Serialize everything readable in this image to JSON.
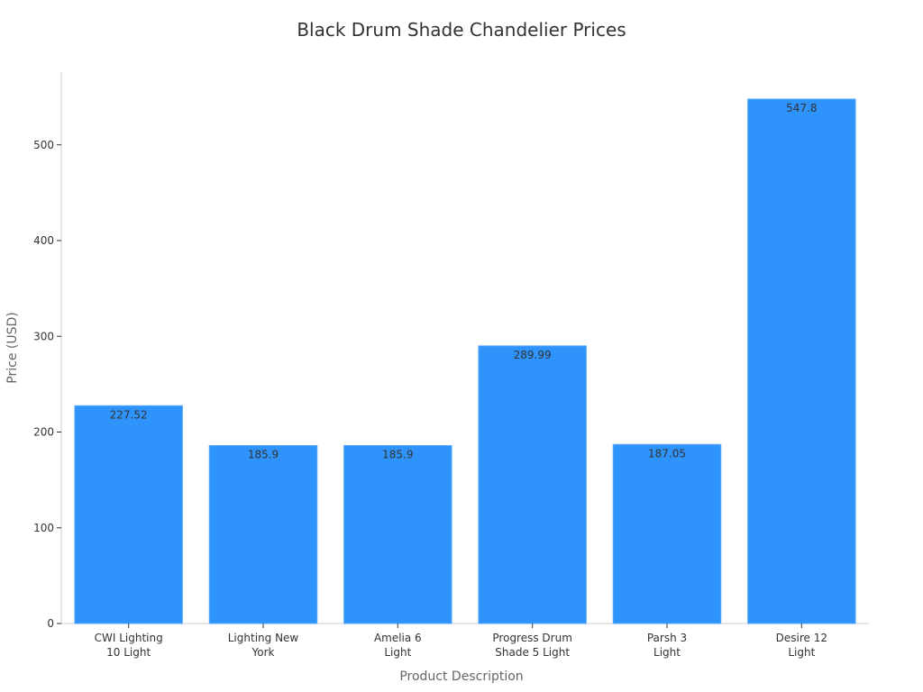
{
  "chart_data": {
    "type": "bar",
    "title": "Black Drum Shade Chandelier Prices",
    "xlabel": "Product Description",
    "ylabel": "Price (USD)",
    "categories": [
      [
        "CWI Lighting",
        "10 Light"
      ],
      [
        "Lighting New",
        "York"
      ],
      [
        "Amelia 6",
        "Light"
      ],
      [
        "Progress Drum",
        "Shade 5 Light"
      ],
      [
        "Parsh 3",
        "Light"
      ],
      [
        "Desire 12",
        "Light"
      ]
    ],
    "values": [
      227.52,
      185.9,
      185.9,
      289.99,
      187.05,
      547.8
    ],
    "value_labels": [
      "227.52",
      "185.9",
      "185.9",
      "289.99",
      "187.05",
      "547.8"
    ],
    "ylim": [
      0,
      576
    ],
    "yticks": [
      0,
      100,
      200,
      300,
      400,
      500
    ],
    "grid": false,
    "legend": "none",
    "colors": {
      "bar": "#2E93FA",
      "bar_edge": "#5AA9F7",
      "axis": "#cccccc",
      "text": "#333333",
      "axis_title": "#666666"
    }
  }
}
